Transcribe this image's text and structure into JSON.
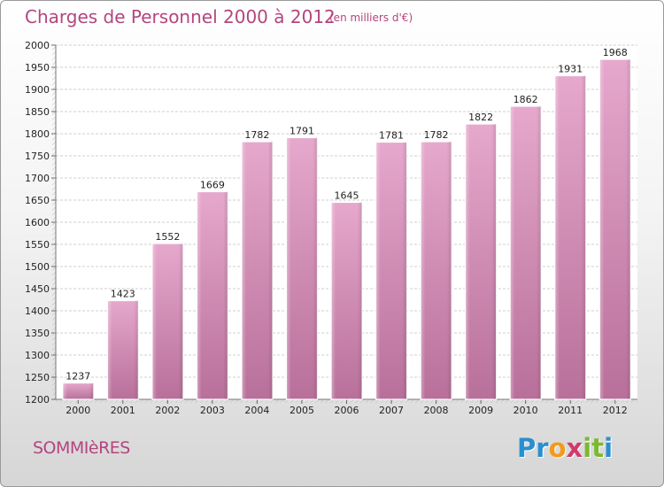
{
  "chart_data": {
    "type": "bar",
    "title": "Charges de Personnel 2000 à 2012",
    "subtitle": "(en milliers d'€)",
    "categories": [
      "2000",
      "2001",
      "2002",
      "2003",
      "2004",
      "2005",
      "2006",
      "2007",
      "2008",
      "2009",
      "2010",
      "2011",
      "2012"
    ],
    "values": [
      1237,
      1423,
      1552,
      1669,
      1782,
      1791,
      1645,
      1781,
      1782,
      1822,
      1862,
      1931,
      1968
    ],
    "ylim": [
      1200,
      2000
    ],
    "yticks": [
      1200,
      1250,
      1300,
      1350,
      1400,
      1450,
      1500,
      1550,
      1600,
      1650,
      1700,
      1750,
      1800,
      1850,
      1900,
      1950,
      2000
    ],
    "grid": true,
    "bar_color": "#d67fb0"
  },
  "footer": {
    "place": "SOMMIèRES",
    "logo_letters": [
      {
        "ch": "P",
        "color": "#2a8fd0"
      },
      {
        "ch": "r",
        "color": "#2a8fd0"
      },
      {
        "ch": "o",
        "color": "#f39a1e"
      },
      {
        "ch": "x",
        "color": "#d23a6a"
      },
      {
        "ch": "i",
        "color": "#7bb931"
      },
      {
        "ch": "t",
        "color": "#7bb931"
      },
      {
        "ch": "i",
        "color": "#2a8fd0"
      }
    ]
  }
}
